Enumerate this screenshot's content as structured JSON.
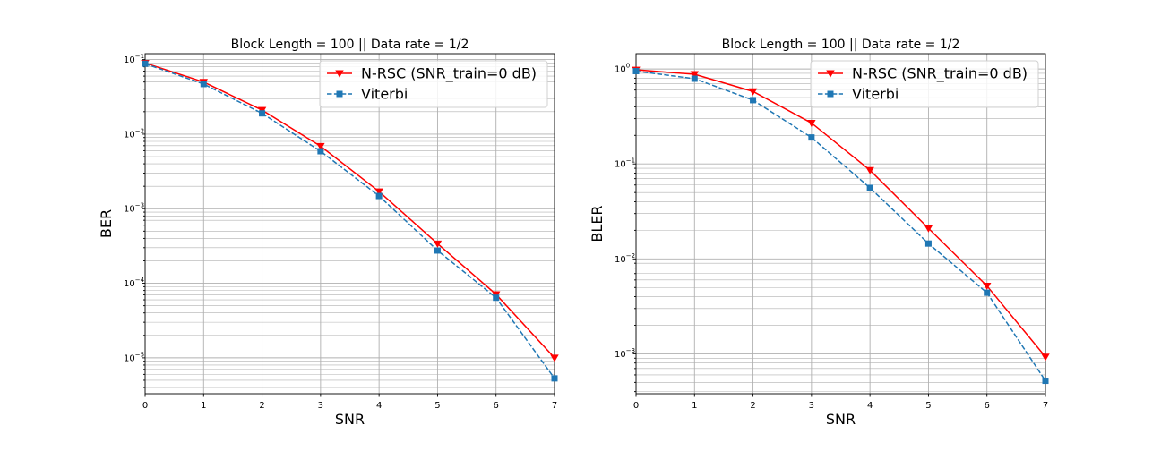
{
  "chart_data": [
    {
      "type": "line",
      "title": "Block Length = 100 || Data rate = 1/2",
      "xlabel": "SNR",
      "ylabel": "BER",
      "xlim": [
        0,
        7
      ],
      "ylim": [
        3.3e-06,
        0.12
      ],
      "yscale": "log",
      "grid": true,
      "legend_placement": "top-right",
      "x": [
        0,
        1,
        2,
        3,
        4,
        5,
        6,
        7
      ],
      "xticks": [
        "0",
        "1",
        "2",
        "3",
        "4",
        "5",
        "6",
        "7"
      ],
      "yticks": [
        {
          "value": 0.1,
          "label": "10",
          "exp": "−1"
        },
        {
          "value": 0.01,
          "label": "10",
          "exp": "−2"
        },
        {
          "value": 0.001,
          "label": "10",
          "exp": "−3"
        },
        {
          "value": 0.0001,
          "label": "10",
          "exp": "−4"
        },
        {
          "value": 1e-05,
          "label": "10",
          "exp": "−5"
        }
      ],
      "series": [
        {
          "name": "N-RSC (SNR_train=0 dB)",
          "color": "#ff0000",
          "marker": "triangle-down",
          "linestyle": "solid",
          "values": [
            0.09,
            0.05,
            0.021,
            0.0069,
            0.0017,
            0.00034,
            7.1e-05,
            1e-05
          ]
        },
        {
          "name": "Viterbi",
          "color": "#1f77b4",
          "marker": "square",
          "linestyle": "dashed",
          "values": [
            0.088,
            0.047,
            0.019,
            0.0059,
            0.00148,
            0.000275,
            6.4e-05,
            5.3e-06
          ]
        }
      ]
    },
    {
      "type": "line",
      "title": "Block Length = 100 || Data rate = 1/2",
      "xlabel": "SNR",
      "ylabel": "BLER",
      "xlim": [
        0,
        7
      ],
      "ylim": [
        0.00038,
        1.45
      ],
      "yscale": "log",
      "grid": true,
      "legend_placement": "top-right",
      "x": [
        0,
        1,
        2,
        3,
        4,
        5,
        6,
        7
      ],
      "xticks": [
        "0",
        "1",
        "2",
        "3",
        "4",
        "5",
        "6",
        "7"
      ],
      "yticks": [
        {
          "value": 1,
          "label": "10",
          "exp": "0"
        },
        {
          "value": 0.1,
          "label": "10",
          "exp": "−1"
        },
        {
          "value": 0.01,
          "label": "10",
          "exp": "−2"
        },
        {
          "value": 0.001,
          "label": "10",
          "exp": "−3"
        }
      ],
      "series": [
        {
          "name": "N-RSC (SNR_train=0 dB)",
          "color": "#ff0000",
          "marker": "triangle-down",
          "linestyle": "solid",
          "values": [
            0.98,
            0.88,
            0.58,
            0.27,
            0.086,
            0.021,
            0.0052,
            0.00093
          ]
        },
        {
          "name": "Viterbi",
          "color": "#1f77b4",
          "marker": "square",
          "linestyle": "dashed",
          "values": [
            0.95,
            0.79,
            0.47,
            0.19,
            0.056,
            0.0145,
            0.0044,
            0.00052
          ]
        }
      ]
    }
  ]
}
